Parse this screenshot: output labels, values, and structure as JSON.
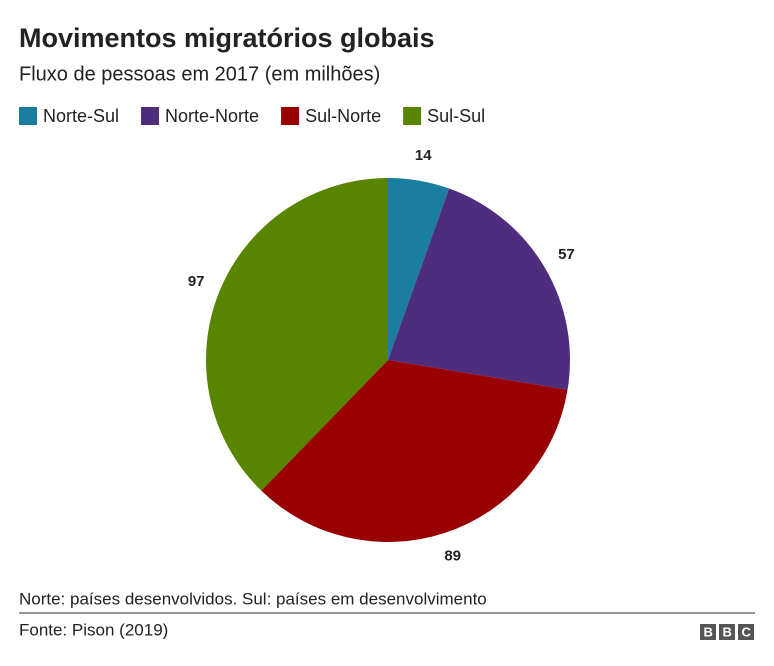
{
  "chart_data": {
    "type": "pie",
    "title": "Movimentos migratórios globais",
    "subtitle": "Fluxo de pessoas em 2017 (em milhões)",
    "categories": [
      "Norte-Sul",
      "Norte-Norte",
      "Sul-Norte",
      "Sul-Sul"
    ],
    "values": [
      14,
      57,
      89,
      97
    ],
    "colors": [
      "#1a7ea0",
      "#4e2d7e",
      "#990000",
      "#588500"
    ],
    "note": "Norte: países desenvolvidos. Sul: países em desenvolvimento",
    "source": "Fonte: Pison (2019)",
    "logo": "BBC"
  }
}
